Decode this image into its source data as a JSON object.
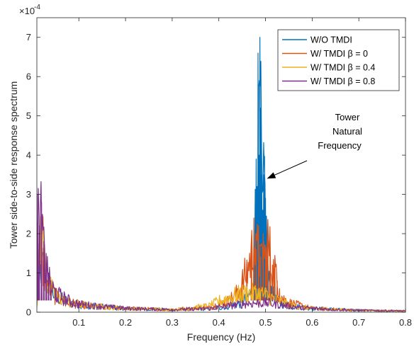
{
  "chart_data": {
    "type": "line",
    "xlabel": "Frequency (Hz)",
    "ylabel": "Tower side-to-side response spectrum",
    "y_exponent_label": "×10",
    "y_exponent_power": "-4",
    "xlim": [
      0.01,
      0.8
    ],
    "ylim": [
      0,
      7.5
    ],
    "x_ticks": [
      0.1,
      0.2,
      0.3,
      0.4,
      0.5,
      0.6,
      0.7,
      0.8
    ],
    "x_tick_labels": [
      "0.1",
      "0.2",
      "0.3",
      "0.4",
      "0.5",
      "0.6",
      "0.7",
      "0.8"
    ],
    "y_ticks": [
      0,
      1,
      2,
      3,
      4,
      5,
      6,
      7
    ],
    "y_tick_labels": [
      "0",
      "1",
      "2",
      "3",
      "4",
      "5",
      "6",
      "7"
    ],
    "legend_position": "top-right",
    "grid": false,
    "series": [
      {
        "name": "W/O TMDI",
        "color": "#0072BD",
        "points": [
          [
            0.01,
            0.3
          ],
          [
            0.02,
            1.6
          ],
          [
            0.03,
            1.0
          ],
          [
            0.05,
            0.5
          ],
          [
            0.08,
            0.3
          ],
          [
            0.12,
            0.2
          ],
          [
            0.2,
            0.12
          ],
          [
            0.3,
            0.08
          ],
          [
            0.38,
            0.1
          ],
          [
            0.42,
            0.18
          ],
          [
            0.45,
            0.3
          ],
          [
            0.47,
            0.6
          ],
          [
            0.475,
            1.5
          ],
          [
            0.478,
            2.8
          ],
          [
            0.48,
            3.9
          ],
          [
            0.482,
            3.2
          ],
          [
            0.484,
            6.6
          ],
          [
            0.486,
            4.0
          ],
          [
            0.488,
            7.0
          ],
          [
            0.49,
            5.2
          ],
          [
            0.492,
            3.5
          ],
          [
            0.494,
            2.6
          ],
          [
            0.496,
            3.5
          ],
          [
            0.498,
            3.97
          ],
          [
            0.5,
            2.9
          ],
          [
            0.503,
            2.0
          ],
          [
            0.506,
            1.0
          ],
          [
            0.51,
            0.8
          ],
          [
            0.52,
            0.4
          ],
          [
            0.53,
            0.3
          ],
          [
            0.55,
            0.2
          ],
          [
            0.6,
            0.12
          ],
          [
            0.7,
            0.06
          ],
          [
            0.8,
            0.04
          ]
        ]
      },
      {
        "name": "W/ TMDI β = 0",
        "color": "#D95319",
        "points": [
          [
            0.01,
            0.3
          ],
          [
            0.02,
            1.6
          ],
          [
            0.03,
            1.0
          ],
          [
            0.05,
            0.5
          ],
          [
            0.08,
            0.3
          ],
          [
            0.12,
            0.2
          ],
          [
            0.2,
            0.12
          ],
          [
            0.3,
            0.08
          ],
          [
            0.38,
            0.15
          ],
          [
            0.42,
            0.35
          ],
          [
            0.44,
            0.6
          ],
          [
            0.45,
            0.9
          ],
          [
            0.46,
            1.3
          ],
          [
            0.47,
            1.8
          ],
          [
            0.475,
            2.4
          ],
          [
            0.48,
            1.6
          ],
          [
            0.485,
            2.2
          ],
          [
            0.49,
            1.4
          ],
          [
            0.495,
            2.0
          ],
          [
            0.5,
            1.6
          ],
          [
            0.505,
            2.2
          ],
          [
            0.51,
            1.8
          ],
          [
            0.515,
            1.2
          ],
          [
            0.52,
            1.4
          ],
          [
            0.525,
            0.8
          ],
          [
            0.53,
            0.6
          ],
          [
            0.54,
            0.4
          ],
          [
            0.55,
            0.3
          ],
          [
            0.6,
            0.12
          ],
          [
            0.7,
            0.06
          ],
          [
            0.8,
            0.04
          ]
        ]
      },
      {
        "name": "W/ TMDI β = 0.4",
        "color": "#EDB120",
        "points": [
          [
            0.01,
            0.3
          ],
          [
            0.02,
            2.8
          ],
          [
            0.03,
            1.0
          ],
          [
            0.05,
            0.5
          ],
          [
            0.08,
            0.3
          ],
          [
            0.12,
            0.2
          ],
          [
            0.2,
            0.12
          ],
          [
            0.3,
            0.08
          ],
          [
            0.38,
            0.2
          ],
          [
            0.4,
            0.35
          ],
          [
            0.42,
            0.45
          ],
          [
            0.44,
            0.55
          ],
          [
            0.46,
            0.6
          ],
          [
            0.48,
            0.6
          ],
          [
            0.5,
            0.55
          ],
          [
            0.52,
            0.4
          ],
          [
            0.54,
            0.3
          ],
          [
            0.56,
            0.2
          ],
          [
            0.6,
            0.12
          ],
          [
            0.7,
            0.06
          ],
          [
            0.8,
            0.04
          ]
        ]
      },
      {
        "name": "W/ TMDI β = 0.8",
        "color": "#7E2F8E",
        "points": [
          [
            0.01,
            0.3
          ],
          [
            0.012,
            3.0
          ],
          [
            0.015,
            2.2
          ],
          [
            0.02,
            2.8
          ],
          [
            0.025,
            1.8
          ],
          [
            0.03,
            1.5
          ],
          [
            0.035,
            1.0
          ],
          [
            0.04,
            0.8
          ],
          [
            0.05,
            0.6
          ],
          [
            0.06,
            0.5
          ],
          [
            0.08,
            0.35
          ],
          [
            0.1,
            0.25
          ],
          [
            0.15,
            0.18
          ],
          [
            0.2,
            0.12
          ],
          [
            0.3,
            0.08
          ],
          [
            0.38,
            0.12
          ],
          [
            0.42,
            0.2
          ],
          [
            0.46,
            0.28
          ],
          [
            0.5,
            0.3
          ],
          [
            0.54,
            0.22
          ],
          [
            0.58,
            0.14
          ],
          [
            0.65,
            0.08
          ],
          [
            0.7,
            0.06
          ],
          [
            0.8,
            0.04
          ]
        ]
      }
    ],
    "annotations": [
      {
        "lines": [
          "Tower",
          "Natural",
          "Frequency"
        ],
        "arrow_to": [
          0.503,
          3.4
        ]
      }
    ]
  }
}
